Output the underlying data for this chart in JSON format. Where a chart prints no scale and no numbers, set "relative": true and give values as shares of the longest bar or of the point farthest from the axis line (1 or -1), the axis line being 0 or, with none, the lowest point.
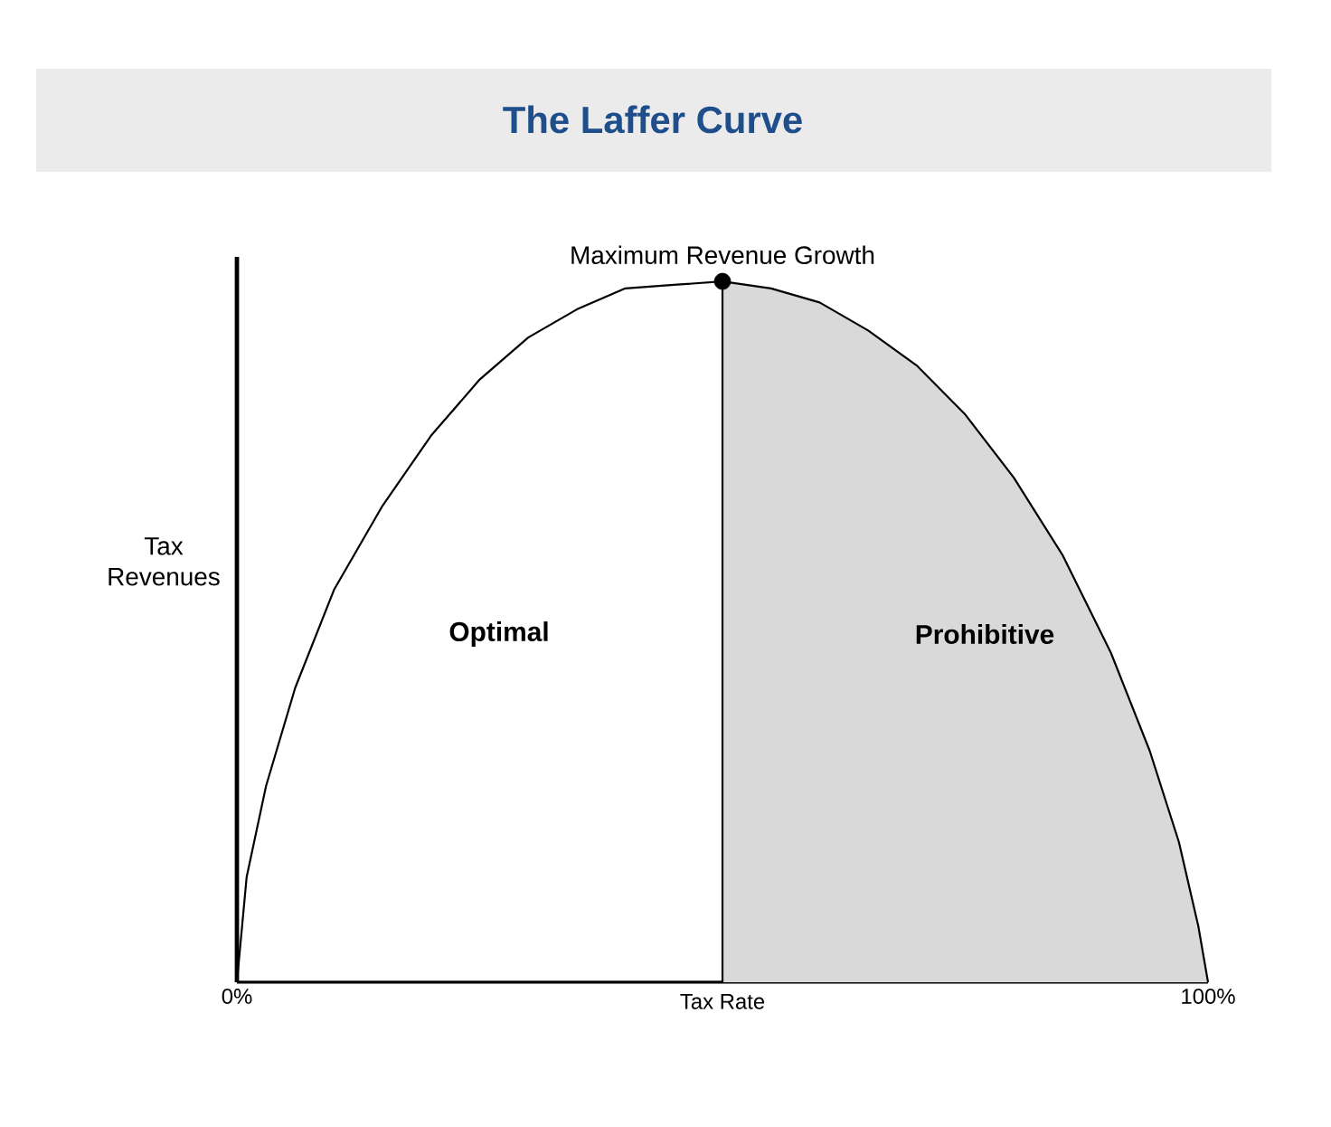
{
  "chart_data": {
    "type": "line",
    "title": "The Laffer Curve",
    "xlabel": "Tax Rate",
    "ylabel": "Tax Revenues",
    "relative": true,
    "x": [
      0,
      1,
      3,
      6,
      10,
      15,
      20,
      25,
      30,
      35,
      40,
      45,
      50,
      55,
      60,
      65,
      70,
      75,
      80,
      85,
      90,
      94,
      97,
      99,
      100
    ],
    "series": [
      {
        "type": "area",
        "color": "#d9d9d9",
        "x": [
          50,
          55,
          60,
          65,
          70,
          75,
          80,
          85,
          90,
          94,
          97,
          99,
          100
        ],
        "values": [
          1,
          0.99,
          0.97,
          0.93,
          0.88,
          0.81,
          0.72,
          0.61,
          0.47,
          0.33,
          0.2,
          0.08,
          0
        ]
      },
      {
        "color": "#000000",
        "values": [
          0,
          0.15,
          0.28,
          0.42,
          0.56,
          0.68,
          0.78,
          0.86,
          0.92,
          0.96,
          0.99,
          0.995,
          1,
          0.99,
          0.97,
          0.93,
          0.88,
          0.81,
          0.72,
          0.61,
          0.47,
          0.33,
          0.2,
          0.08,
          0
        ]
      },
      {
        "type": "scatter",
        "color": "#000000",
        "x": [
          50
        ],
        "values": [
          1
        ]
      }
    ],
    "xlim": [
      0,
      100
    ],
    "xticks": [
      {
        "value": 0,
        "label": "0%"
      },
      {
        "value": 100,
        "label": "100%"
      }
    ],
    "annotations": [
      "Optimal",
      "Prohibitive"
    ],
    "ref_lines": [
      {
        "axis": "x",
        "value": 50,
        "label": "Maximum Revenue Growth",
        "color": "#000000"
      }
    ],
    "grid": false
  }
}
